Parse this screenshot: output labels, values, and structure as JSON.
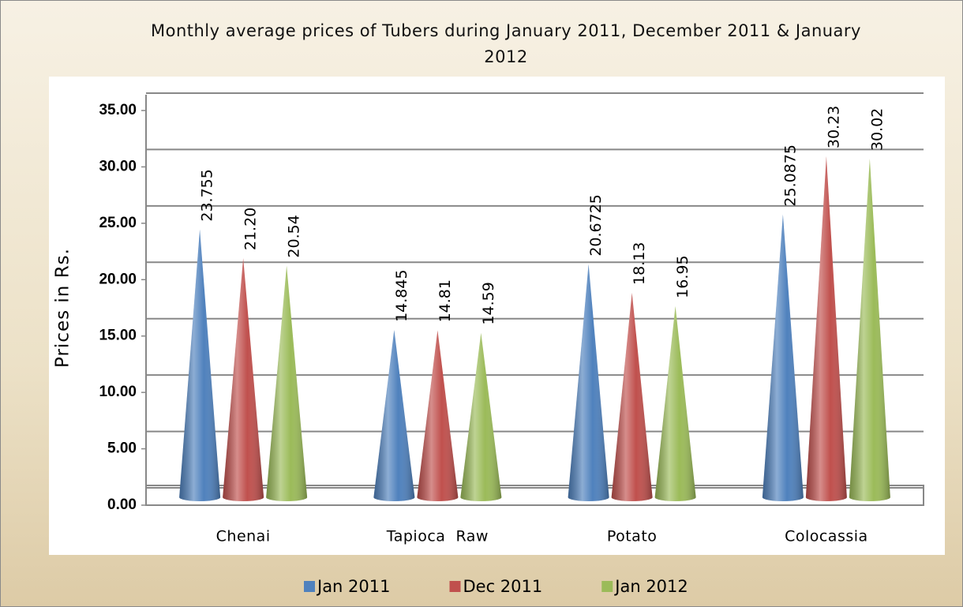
{
  "chart_data": {
    "type": "bar",
    "title": "Monthly average prices of Tubers during January 2011, December 2011 & January 2012",
    "y_label": "Prices in Rs.",
    "categories": [
      "Chenai",
      "Tapioca  Raw",
      "Potato",
      "Colocassia"
    ],
    "series": [
      {
        "name": "Jan 2011",
        "color": "#4f81bd",
        "values": [
          23.755,
          14.845,
          20.6725,
          25.0875
        ]
      },
      {
        "name": "Dec 2011",
        "color": "#c0504d",
        "values": [
          21.2,
          14.81,
          18.13,
          30.23
        ],
        "value_labels": [
          "21.20",
          "14.81",
          "18.13",
          "30.23"
        ]
      },
      {
        "name": "Jan 2012",
        "color": "#9bbb59",
        "values": [
          20.54,
          14.59,
          16.95,
          30.02
        ]
      }
    ],
    "ylim": [
      0,
      35
    ],
    "yticks": [
      {
        "value": 0,
        "label": "0.00"
      },
      {
        "value": 5,
        "label": "5.00"
      },
      {
        "value": 10,
        "label": "10.00"
      },
      {
        "value": 15,
        "label": "15.00"
      },
      {
        "value": 20,
        "label": "20.00"
      },
      {
        "value": 25,
        "label": "25.00"
      },
      {
        "value": 30,
        "label": "30.00"
      },
      {
        "value": 35,
        "label": "35.00"
      }
    ],
    "grid": true,
    "legend": "bottom"
  }
}
